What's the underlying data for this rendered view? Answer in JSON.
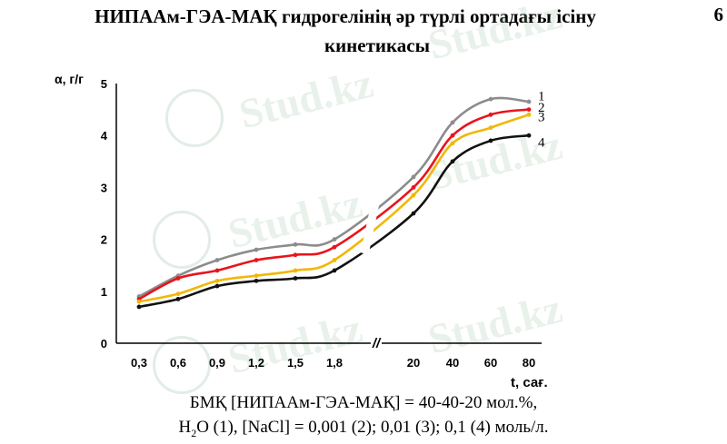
{
  "title": {
    "line1": "НИПААм-ГЭА-МАҚ гидрогелінің әр түрлі ортадағы ісіну",
    "line2": "кинетикасы"
  },
  "page_number": "6",
  "watermark": "Stud.kz",
  "caption": {
    "line1": "БМҚ [НИПААм-ГЭА-МАҚ] = 40-40-20 мол.%,",
    "line2_prefix": "H",
    "line2_sub": "2",
    "line2_rest": "O (1), [NaCl] = 0,001 (2); 0,01 (3); 0,1 (4) моль/л."
  },
  "chart_data": {
    "type": "line",
    "ylabel": "α, г/г",
    "xlabel": "t, сағ.",
    "ylim": [
      0,
      5
    ],
    "yticks": [
      "0",
      "1",
      "2",
      "3",
      "4",
      "5"
    ],
    "categories": [
      "0,3",
      "0,6",
      "0,9",
      "1,2",
      "1,5",
      "1,8",
      "//",
      "20",
      "40",
      "60",
      "80"
    ],
    "axis_break_after": "1,8",
    "grid": false,
    "legend": "right, series numbers placed at line ends",
    "series": [
      {
        "name": "1",
        "color": "#8c8c8c",
        "values": [
          0.9,
          1.3,
          1.6,
          1.8,
          1.9,
          2.0,
          null,
          3.2,
          4.25,
          4.7,
          4.65
        ]
      },
      {
        "name": "2",
        "color": "#e8141c",
        "values": [
          0.85,
          1.25,
          1.4,
          1.6,
          1.7,
          1.85,
          null,
          3.0,
          4.0,
          4.4,
          4.5
        ]
      },
      {
        "name": "3",
        "color": "#f2b705",
        "values": [
          0.8,
          0.95,
          1.2,
          1.3,
          1.4,
          1.6,
          null,
          2.85,
          3.85,
          4.15,
          4.4
        ]
      },
      {
        "name": "4",
        "color": "#111111",
        "values": [
          0.7,
          0.85,
          1.1,
          1.2,
          1.25,
          1.4,
          null,
          2.5,
          3.5,
          3.9,
          4.0
        ]
      }
    ]
  }
}
